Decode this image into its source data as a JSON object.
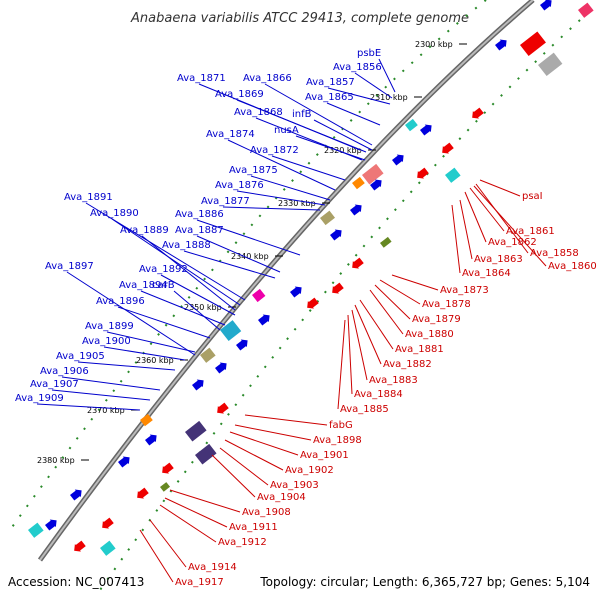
{
  "title": "Anabaena variabilis ATCC 29413, complete genome",
  "footer": {
    "accession": "Accession: NC_007413",
    "summary": "Topology: circular; Length: 6,365,727 bp; Genes: 5,104"
  },
  "colors": {
    "forward": "#0000cc",
    "reverse": "#cc0000",
    "backbone": "#888888",
    "tick": "#2a8a2a"
  },
  "ticks": [
    {
      "label": "2300 kbp"
    },
    {
      "label": "2310 kbp"
    },
    {
      "label": "2320 kbp"
    },
    {
      "label": "2330 kbp"
    },
    {
      "label": "2340 kbp"
    },
    {
      "label": "2350 kbp"
    },
    {
      "label": "2360 kbp"
    },
    {
      "label": "2370 kbp"
    },
    {
      "label": "2380 kbp"
    }
  ],
  "forward_labels": [
    "psbE",
    "Ava_1856",
    "Ava_1857",
    "Ava_1871",
    "Ava_1866",
    "Ava_1869",
    "Ava_1865",
    "Ava_1868",
    "infB",
    "nusA",
    "Ava_1874",
    "Ava_1872",
    "Ava_1875",
    "Ava_1876",
    "Ava_1877",
    "Ava_1891",
    "Ava_1890",
    "Ava_1886",
    "Ava_1889",
    "Ava_1887",
    "Ava_1888",
    "Ava_1897",
    "Ava_1892",
    "Ava_1894",
    "carB",
    "Ava_1896",
    "Ava_1899",
    "Ava_1900",
    "Ava_1905",
    "Ava_1906",
    "Ava_1907",
    "Ava_1909"
  ],
  "reverse_labels": [
    "psaI",
    "Ava_1861",
    "Ava_1862",
    "Ava_1858",
    "Ava_1863",
    "Ava_1860",
    "Ava_1864",
    "Ava_1873",
    "Ava_1878",
    "Ava_1879",
    "Ava_1880",
    "Ava_1881",
    "Ava_1882",
    "Ava_1883",
    "Ava_1884",
    "Ava_1885",
    "fabG",
    "Ava_1898",
    "Ava_1901",
    "Ava_1902",
    "Ava_1903",
    "Ava_1904",
    "Ava_1908",
    "Ava_1911",
    "Ava_1912",
    "Ava_1914",
    "Ava_1917"
  ]
}
